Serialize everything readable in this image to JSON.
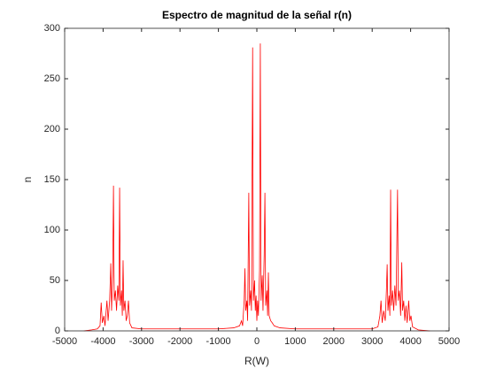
{
  "chart_data": {
    "type": "line",
    "title": "Espectro de magnitud de la señal r(n)",
    "xlabel": "R(W)",
    "ylabel": "n",
    "color": "#ff0000",
    "xlim": [
      -5000,
      5000
    ],
    "ylim": [
      0,
      300
    ],
    "xticks": [
      -5000,
      -4000,
      -3000,
      -2000,
      -1000,
      0,
      1000,
      2000,
      3000,
      4000,
      5000
    ],
    "yticks": [
      0,
      50,
      100,
      150,
      200,
      250,
      300
    ],
    "x": [
      -4500,
      -4300,
      -4150,
      -4080,
      -4050,
      -4020,
      -3980,
      -3950,
      -3900,
      -3870,
      -3830,
      -3800,
      -3780,
      -3750,
      -3730,
      -3710,
      -3680,
      -3650,
      -3620,
      -3590,
      -3570,
      -3550,
      -3520,
      -3500,
      -3480,
      -3460,
      -3430,
      -3400,
      -3370,
      -3340,
      -3310,
      -3250,
      -3000,
      -2500,
      -2000,
      -1500,
      -1000,
      -600,
      -450,
      -400,
      -370,
      -330,
      -310,
      -290,
      -260,
      -240,
      -210,
      -190,
      -160,
      -140,
      -110,
      -90,
      -60,
      -40,
      -20,
      0,
      20,
      40,
      70,
      90,
      110,
      140,
      160,
      190,
      210,
      230,
      260,
      280,
      300,
      320,
      360,
      400,
      450,
      600,
      1000,
      1500,
      2000,
      2500,
      3000,
      3150,
      3200,
      3230,
      3260,
      3300,
      3340,
      3370,
      3390,
      3410,
      3440,
      3460,
      3480,
      3500,
      3530,
      3560,
      3590,
      3620,
      3660,
      3680,
      3710,
      3740,
      3770,
      3790,
      3820,
      3850,
      3880,
      3910,
      3950,
      3980,
      4010,
      4050,
      4200,
      4500
    ],
    "values": [
      0,
      1,
      2,
      5,
      28,
      8,
      15,
      5,
      30,
      10,
      30,
      67,
      20,
      55,
      144,
      30,
      40,
      20,
      45,
      30,
      142,
      25,
      40,
      15,
      70,
      20,
      30,
      10,
      15,
      30,
      8,
      3,
      2,
      2,
      2,
      2,
      2,
      3,
      5,
      10,
      5,
      30,
      62,
      20,
      30,
      10,
      137,
      25,
      40,
      20,
      281,
      30,
      50,
      20,
      35,
      10,
      30,
      15,
      60,
      285,
      30,
      55,
      20,
      75,
      137,
      25,
      40,
      15,
      58,
      15,
      10,
      8,
      5,
      3,
      2,
      2,
      2,
      2,
      2,
      4,
      15,
      30,
      8,
      20,
      10,
      40,
      66,
      20,
      35,
      15,
      140,
      25,
      40,
      20,
      45,
      25,
      140,
      30,
      40,
      15,
      68,
      20,
      30,
      10,
      25,
      8,
      30,
      10,
      15,
      4,
      1,
      0
    ]
  }
}
